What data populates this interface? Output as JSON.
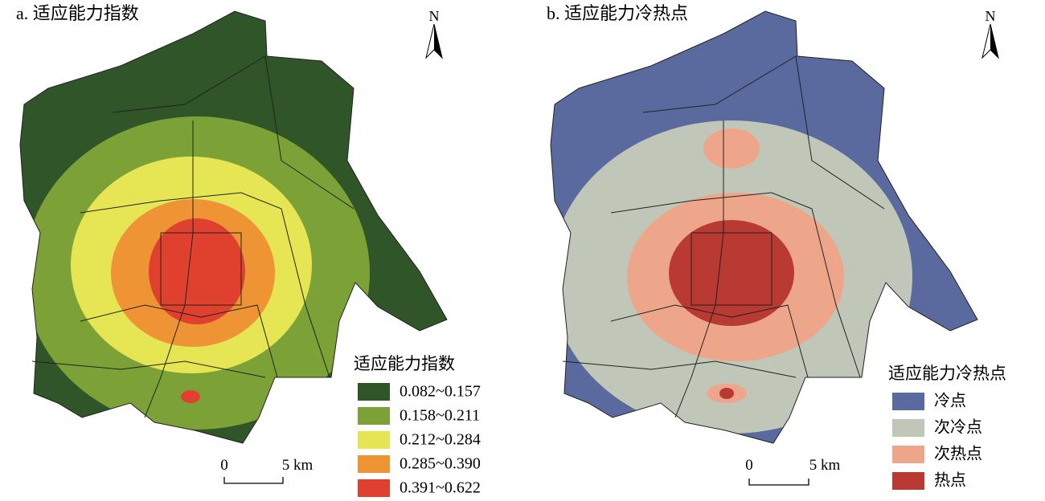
{
  "panels": [
    {
      "title": "a. 适应能力指数",
      "north": "N",
      "scale": {
        "start": "0",
        "end": "5 km"
      },
      "legend": {
        "title": "适应能力指数",
        "items": [
          {
            "label": "0.082~0.157",
            "color": "#2f5528"
          },
          {
            "label": "0.158~0.211",
            "color": "#7ca237"
          },
          {
            "label": "0.212~0.284",
            "color": "#e6e553"
          },
          {
            "label": "0.285~0.390",
            "color": "#ef9435"
          },
          {
            "label": "0.391~0.622",
            "color": "#e0412f"
          }
        ]
      }
    },
    {
      "title": "b. 适应能力冷热点",
      "north": "N",
      "scale": {
        "start": "0",
        "end": "5 km"
      },
      "legend": {
        "title": "适应能力冷热点",
        "items": [
          {
            "label": "冷点",
            "color": "#5a6a9e"
          },
          {
            "label": "次冷点",
            "color": "#c0c6b8"
          },
          {
            "label": "次热点",
            "color": "#eea68a"
          },
          {
            "label": "热点",
            "color": "#b83a33"
          }
        ]
      }
    }
  ]
}
